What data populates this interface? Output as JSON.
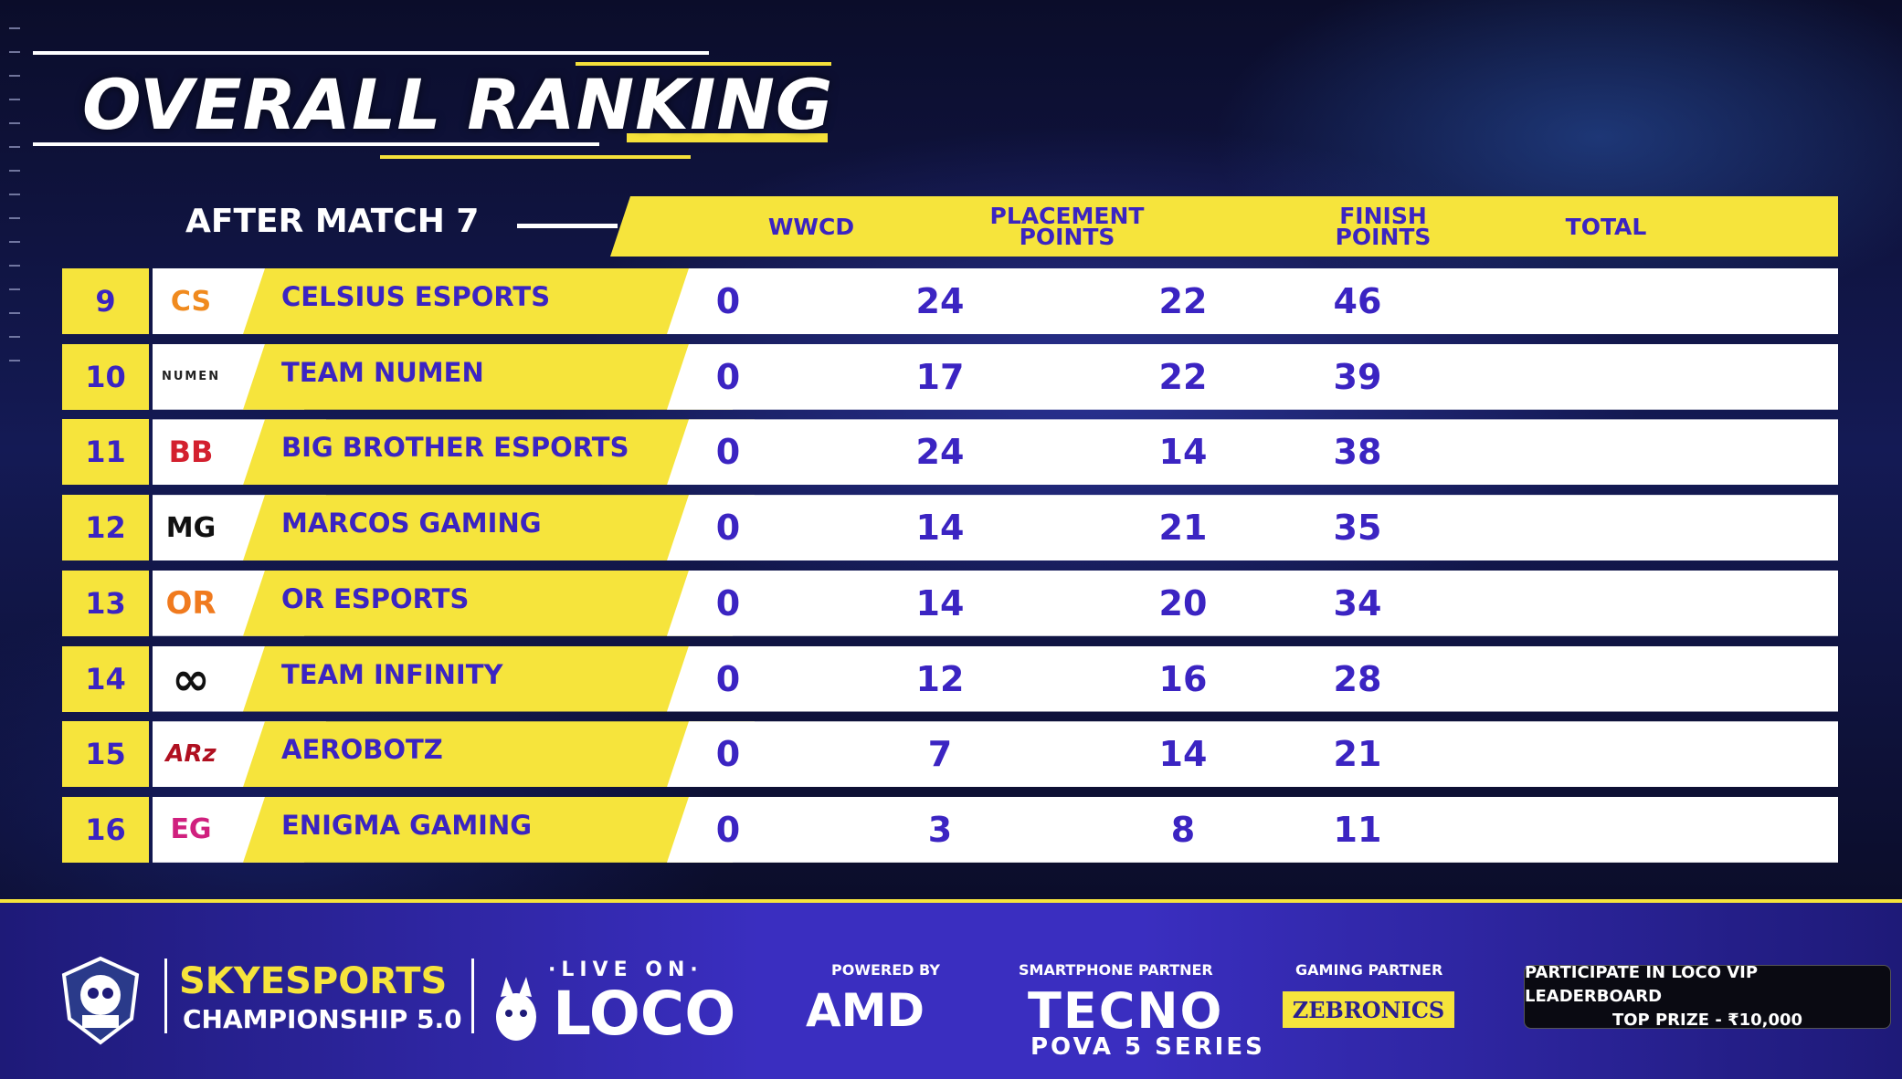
{
  "title": "OVERALL RANKING",
  "subtitle": "AFTER MATCH 7",
  "columns": {
    "wwcd": "WWCD",
    "placement_line1": "PLACEMENT",
    "placement_line2": "POINTS",
    "finish_line1": "FINISH",
    "finish_line2": "POINTS",
    "total": "TOTAL"
  },
  "rows": [
    {
      "rank": "9",
      "logo": "CS",
      "team": "CELSIUS ESPORTS",
      "wwcd": "0",
      "placement": "24",
      "finish": "22",
      "total": "46"
    },
    {
      "rank": "10",
      "logo": "NUMEN",
      "team": "TEAM NUMEN",
      "wwcd": "0",
      "placement": "17",
      "finish": "22",
      "total": "39"
    },
    {
      "rank": "11",
      "logo": "BB",
      "team": "BIG BROTHER ESPORTS",
      "wwcd": "0",
      "placement": "24",
      "finish": "14",
      "total": "38"
    },
    {
      "rank": "12",
      "logo": "MG",
      "team": "MARCOS GAMING",
      "wwcd": "0",
      "placement": "14",
      "finish": "21",
      "total": "35"
    },
    {
      "rank": "13",
      "logo": "OR",
      "team": "OR ESPORTS",
      "wwcd": "0",
      "placement": "14",
      "finish": "20",
      "total": "34"
    },
    {
      "rank": "14",
      "logo": "∞",
      "team": "TEAM INFINITY",
      "wwcd": "0",
      "placement": "12",
      "finish": "16",
      "total": "28"
    },
    {
      "rank": "15",
      "logo": "ARz",
      "team": "AEROBOTZ",
      "wwcd": "0",
      "placement": "7",
      "finish": "14",
      "total": "21"
    },
    {
      "rank": "16",
      "logo": "EG",
      "team": "ENIGMA GAMING",
      "wwcd": "0",
      "placement": "3",
      "finish": "8",
      "total": "11"
    }
  ],
  "footer": {
    "brand_title": "SKYESPORTS",
    "brand_sub": "CHAMPIONSHIP 5.0",
    "live_on": "·LIVE ON·",
    "loco": "LOCO",
    "powered_by": "POWERED BY",
    "amd": "AMD",
    "smartphone_partner": "SMARTPHONE PARTNER",
    "tecno": "TECNO",
    "pova": "POVA 5 SERIES",
    "gaming_partner": "GAMING PARTNER",
    "zebronics": "ZEBRONICS",
    "vip_line1": "PARTICIPATE IN LOCO VIP LEADERBOARD",
    "vip_line2": "TOP PRIZE - ₹10,000"
  },
  "colors": {
    "accent_yellow": "#f6e43c",
    "text_blue": "#3b24c2",
    "footer_blue": "#3a2ec0"
  }
}
